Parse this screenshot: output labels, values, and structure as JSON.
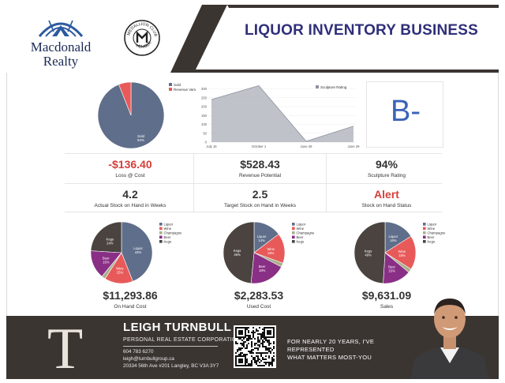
{
  "header": {
    "brand": {
      "name_line1": "Macdonald",
      "name_line2": "Realty"
    },
    "seal": {
      "top_text": "MEDALLION CLUB",
      "bottom_text": "MEMBER"
    },
    "title": "LIQUOR INVENTORY BUSINESS"
  },
  "top_pie": {
    "legend": [
      "Sold",
      "Revenue Variance"
    ],
    "slice_label": "Sold",
    "slice_pct": "94%",
    "values": [
      94,
      6
    ],
    "colors": [
      "#5f6e8a",
      "#e85a5a"
    ]
  },
  "area_chart": {
    "legend": "Sculpture Rating",
    "categories": [
      "July 16",
      "October 1",
      "June 29",
      "June 29"
    ],
    "values": [
      240,
      318,
      5,
      90
    ],
    "yticks": [
      0,
      50,
      100,
      150,
      200,
      250,
      300
    ],
    "ylim": [
      0,
      320
    ]
  },
  "grade": "B-",
  "metrics_row1": [
    {
      "value": "-$136.40",
      "label": "Loss @ Cost",
      "color": "red"
    },
    {
      "value": "$528.43",
      "label": "Revenue Potential",
      "color": "normal"
    },
    {
      "value": "94%",
      "label": "Sculpture Rating",
      "color": "normal"
    }
  ],
  "metrics_row2": [
    {
      "value": "4.2",
      "label": "Actual Stock on Hand in Weeks",
      "color": "normal"
    },
    {
      "value": "2.5",
      "label": "Target Stock on Hand in Weeks",
      "color": "normal"
    },
    {
      "value": "Alert",
      "label": "Stock on Hand Status",
      "color": "red"
    }
  ],
  "pie_legend": [
    "Liquor",
    "Wine",
    "Champagne",
    "Beer",
    "Kegs"
  ],
  "pie_colors": [
    "#5f6e8a",
    "#e85a5a",
    "#a8b08a",
    "#8a2f86",
    "#4a4340"
  ],
  "pies": [
    {
      "values": [
        44,
        15,
        2,
        15,
        24
      ],
      "labels": [
        "Liquor 44%",
        "Wine 15%",
        "",
        "Beer 15%",
        "Kegs 24%"
      ],
      "total": "$11,293.86",
      "caption": "On Hand Cost"
    },
    {
      "values": [
        14,
        15,
        2,
        18,
        46
      ],
      "labels": [
        "Liquor 14%",
        "Wine 15%",
        "",
        "Beer 18%",
        "Kegs 46%"
      ],
      "total": "$2,283.53",
      "caption": "Used Cost"
    },
    {
      "values": [
        16,
        18,
        2,
        15,
        49
      ],
      "labels": [
        "Liquor 16%",
        "Wine 18%",
        "",
        "Beer 15%",
        "Kegs 49%"
      ],
      "total": "$9,631.09",
      "caption": "Sales"
    }
  ],
  "footer": {
    "initial": "T",
    "name": "LEIGH TURNBULL",
    "corp": "PERSONAL REAL ESTATE CORPORATION",
    "phone": "604 783 6270",
    "email": "leigh@turnbullgroup.ca",
    "address": "20334 56th Ave #201 Langley, BC  V3A 3Y7",
    "tagline_1": "FOR NEARLY 20 YEARS, I'VE REPRESENTED",
    "tagline_2": "WHAT MATTERS MOST-YOU"
  }
}
